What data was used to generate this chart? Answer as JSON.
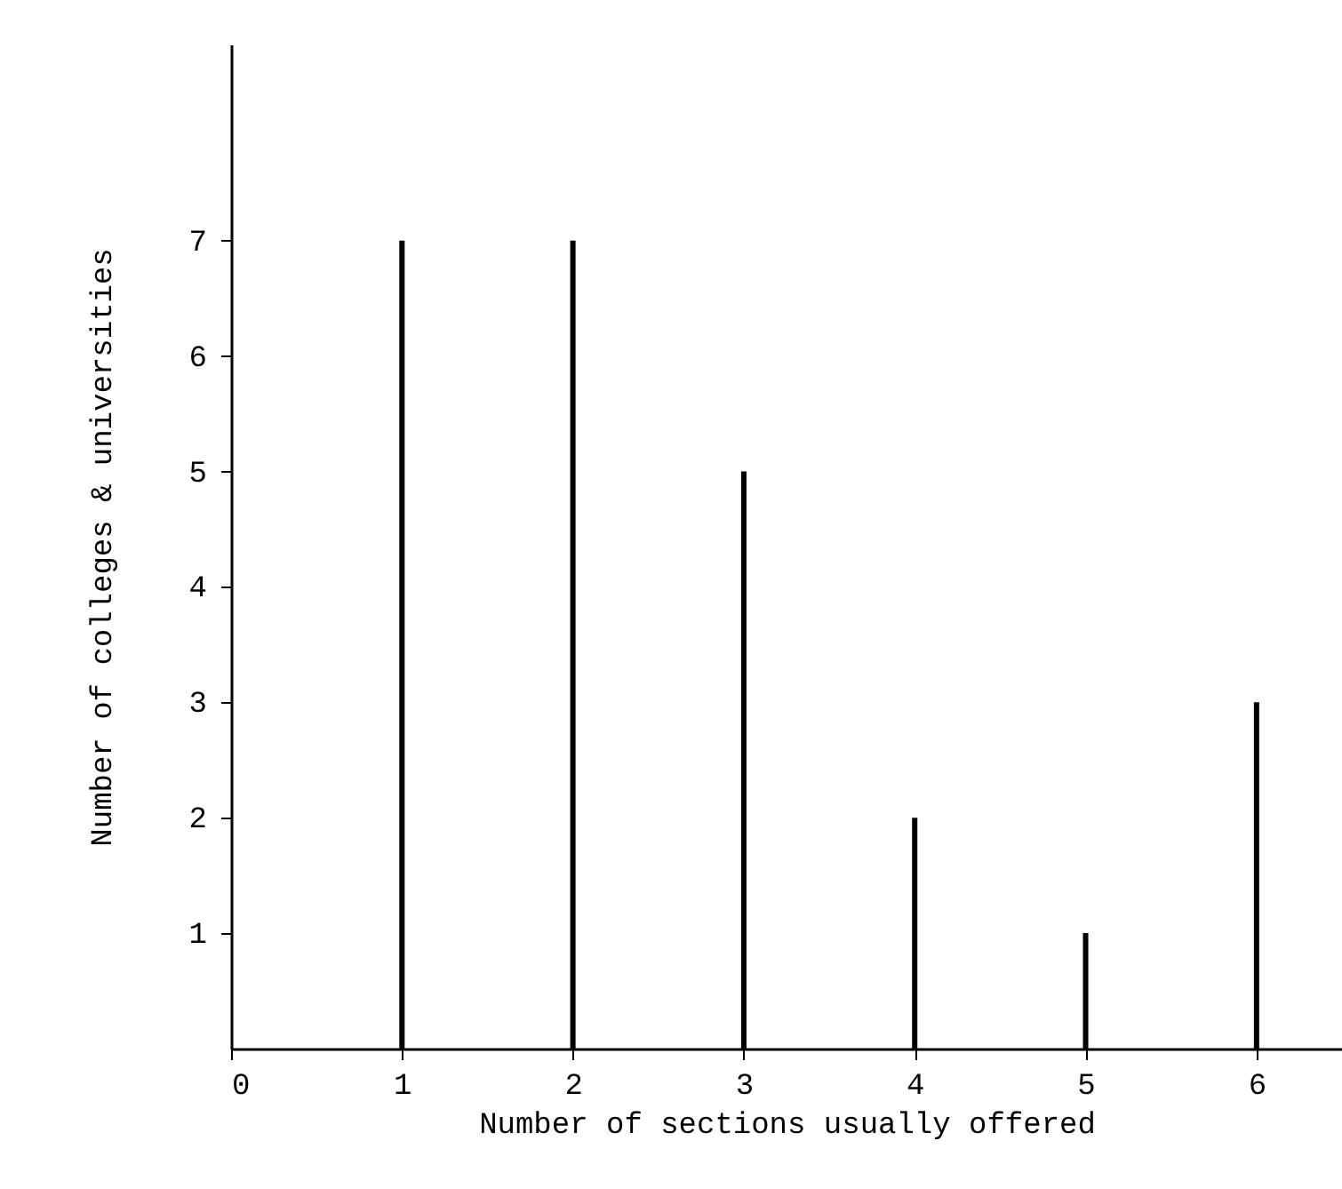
{
  "chart_data": {
    "type": "bar",
    "xlabel": "Number of sections usually offered",
    "ylabel": "Number of colleges & universities",
    "x": [
      1,
      2,
      3,
      4,
      5,
      6
    ],
    "values": [
      7,
      7,
      5,
      2,
      1,
      3
    ],
    "color": "#000000",
    "xlim": [
      0,
      6.5
    ],
    "xticks": [
      0,
      1,
      2,
      3,
      4,
      5,
      6
    ],
    "ylim": [
      0,
      8.7
    ],
    "yticks": [
      1,
      2,
      3,
      4,
      5,
      6,
      7
    ],
    "grid": false
  }
}
